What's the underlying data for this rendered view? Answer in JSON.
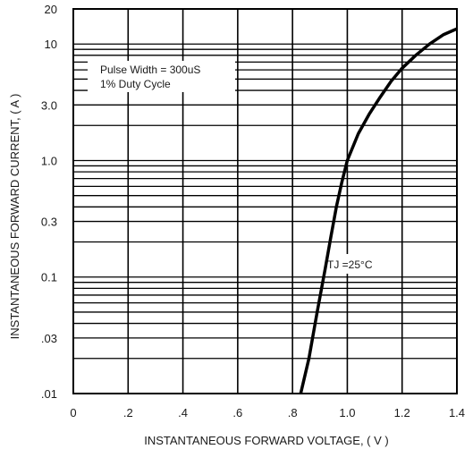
{
  "chart_data": {
    "type": "line",
    "title": "",
    "xlabel": "INSTANTANEOUS FORWARD VOLTAGE, ( V )",
    "ylabel": "INSTANTANEOUS FORWARD CURRENT, ( A )",
    "xlim": [
      0,
      1.4
    ],
    "ylim": [
      0.01,
      20
    ],
    "yscale": "log",
    "x_ticks": [
      {
        "value": 0,
        "label": "0"
      },
      {
        "value": 0.2,
        "label": ".2"
      },
      {
        "value": 0.4,
        "label": ".4"
      },
      {
        "value": 0.6,
        "label": ".6"
      },
      {
        "value": 0.8,
        "label": ".8"
      },
      {
        "value": 1.0,
        "label": "1.0"
      },
      {
        "value": 1.2,
        "label": "1.2"
      },
      {
        "value": 1.4,
        "label": "1.4"
      }
    ],
    "y_ticks": [
      {
        "value": 20,
        "label": "20"
      },
      {
        "value": 10,
        "label": "10"
      },
      {
        "value": 3,
        "label": "3.0"
      },
      {
        "value": 1,
        "label": "1.0"
      },
      {
        "value": 0.3,
        "label": "0.3"
      },
      {
        "value": 0.1,
        "label": "0.1"
      },
      {
        "value": 0.03,
        "label": ".03"
      },
      {
        "value": 0.01,
        "label": ".01"
      }
    ],
    "y_gridlines": [
      0.01,
      0.02,
      0.03,
      0.04,
      0.05,
      0.06,
      0.07,
      0.08,
      0.09,
      0.1,
      0.2,
      0.3,
      0.4,
      0.5,
      0.6,
      0.7,
      0.8,
      0.9,
      1,
      2,
      3,
      4,
      5,
      6,
      7,
      8,
      9,
      10,
      20
    ],
    "grid": true,
    "annotations": {
      "pulse_width": "Pulse Width = 300uS",
      "duty_cycle": "1% Duty Cycle",
      "temperature": "TJ =25°C"
    },
    "series": [
      {
        "x": [
          0.83,
          0.86,
          0.89,
          0.92,
          0.94,
          0.96,
          0.98,
          1.0,
          1.04,
          1.08,
          1.12,
          1.16,
          1.2,
          1.25,
          1.3,
          1.35,
          1.4
        ],
        "y": [
          0.01,
          0.02,
          0.05,
          0.12,
          0.22,
          0.4,
          0.65,
          1.0,
          1.7,
          2.5,
          3.5,
          4.8,
          6.2,
          8.0,
          10.0,
          12.0,
          13.5
        ]
      }
    ],
    "colors": {
      "line": "#000000",
      "grid": "#000000",
      "text": "#1a1a1a"
    }
  }
}
